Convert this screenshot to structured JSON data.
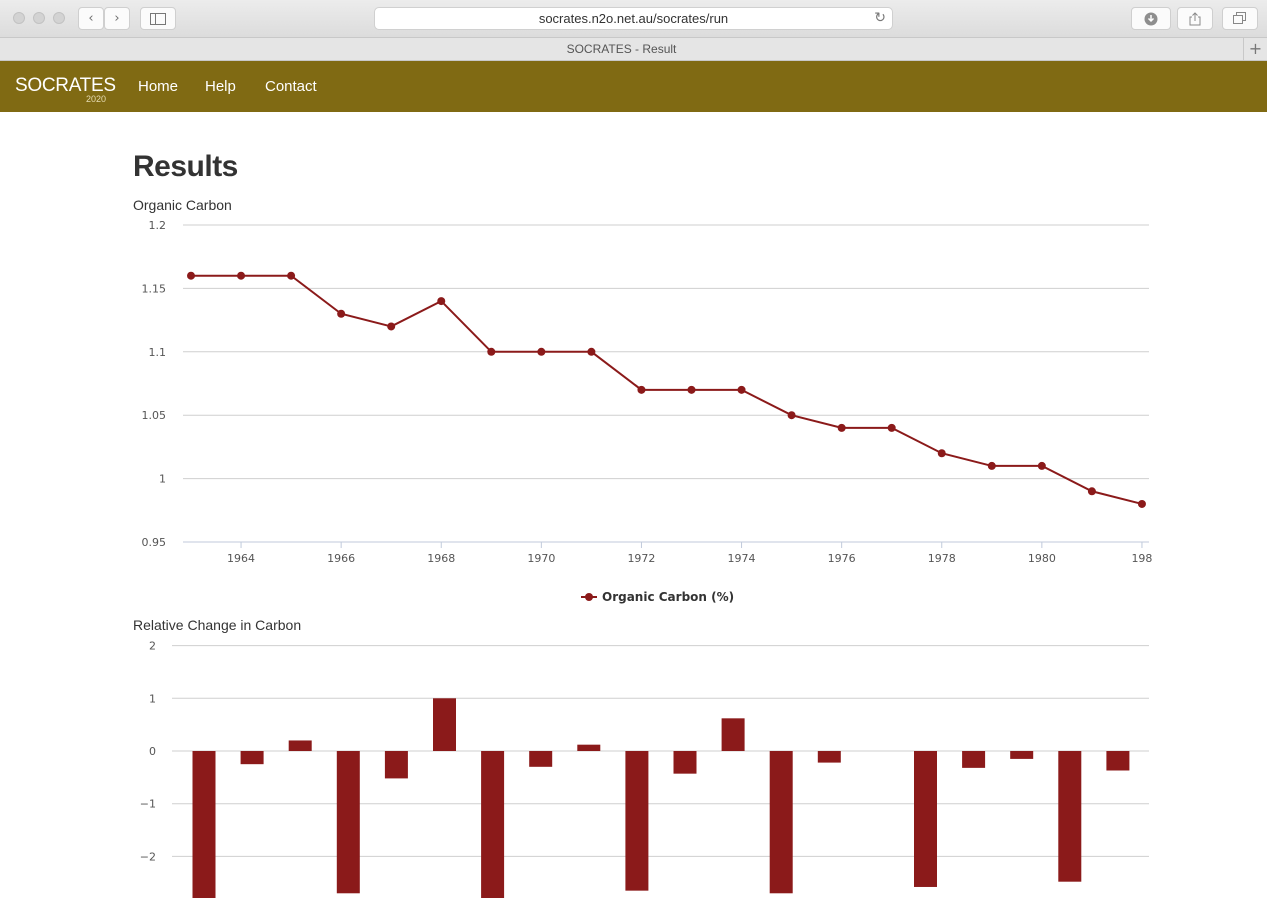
{
  "browser": {
    "url": "socrates.n2o.net.au/socrates/run",
    "tab_title": "SOCRATES - Result",
    "back_glyph": "‹",
    "forward_glyph": "›",
    "reload_glyph": "↻",
    "newtab_glyph": "+"
  },
  "nav": {
    "brand": "SOCRATES",
    "brand_year": "2020",
    "links": [
      "Home",
      "Help",
      "Contact"
    ],
    "bg_color": "#806a13"
  },
  "page": {
    "title": "Results",
    "chart1_title": "Organic Carbon",
    "chart2_title": "Relative Change in Carbon"
  },
  "chart_data": [
    {
      "type": "line",
      "title": "Organic Carbon",
      "series": [
        {
          "name": "Organic Carbon (%)",
          "color": "#8b1a1a",
          "values": [
            1.16,
            1.16,
            1.16,
            1.13,
            1.12,
            1.14,
            1.1,
            1.1,
            1.1,
            1.07,
            1.07,
            1.07,
            1.05,
            1.04,
            1.04,
            1.02,
            1.01,
            1.01,
            0.99,
            0.98
          ]
        }
      ],
      "x": [
        1963,
        1964,
        1965,
        1966,
        1967,
        1968,
        1969,
        1970,
        1971,
        1972,
        1973,
        1974,
        1975,
        1976,
        1977,
        1978,
        1979,
        1980,
        1981,
        1982
      ],
      "xticks": [
        "1964",
        "1966",
        "1968",
        "1970",
        "1972",
        "1974",
        "1976",
        "1978",
        "1980",
        "198"
      ],
      "yticks": [
        "0.95",
        "1",
        "1.05",
        "1.1",
        "1.15",
        "1.2"
      ],
      "ylim": [
        0.95,
        1.2
      ],
      "grid": true,
      "legend": "bottom-center"
    },
    {
      "type": "bar",
      "title": "Relative Change in Carbon",
      "color": "#8b1a1a",
      "values": [
        -2.8,
        -0.25,
        0.2,
        -2.7,
        -0.52,
        1.0,
        -2.8,
        -0.3,
        0.12,
        -2.65,
        -0.43,
        0.62,
        -2.7,
        -0.22,
        0,
        -2.58,
        -0.32,
        -0.15,
        -2.48,
        -0.37
      ],
      "yticks": [
        "2",
        "1",
        "0",
        "−1",
        "−2"
      ],
      "ylim": [
        -2.8,
        2
      ],
      "grid": true
    }
  ]
}
